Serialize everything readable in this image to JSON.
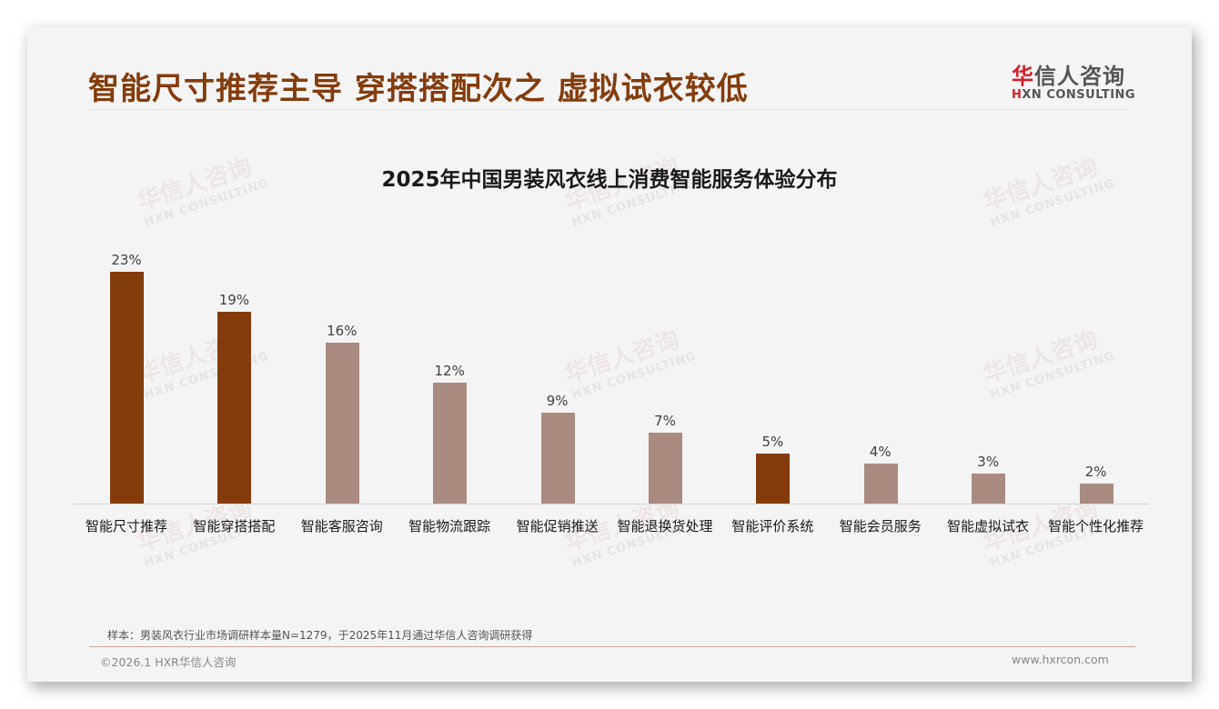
{
  "slide": {
    "title": "智能尺寸推荐主导 穿搭搭配次之 虚拟试衣较低",
    "logo": {
      "cn_first": "华",
      "cn_rest": "信人咨询",
      "en_first": "H",
      "en_rest": "XN CONSULTING"
    },
    "watermark": {
      "cn": "华信人咨询",
      "en": "HXN CONSULTING"
    },
    "footnote": "样本：男装风衣行业市场调研样本量N=1279，于2025年11月通过华信人咨询调研获得",
    "footer_left": "©2026.1 HXR华信人咨询",
    "footer_right": "www.hxrcon.com"
  },
  "colors": {
    "highlight": "#843C0C",
    "normal": "#A98B80",
    "title": "#843C0C"
  },
  "chart_data": {
    "type": "bar",
    "title": "2025年中国男装风衣线上消费智能服务体验分布",
    "xlabel": "",
    "ylabel": "",
    "ylim": [
      0,
      25
    ],
    "grid": false,
    "legend": "none",
    "categories": [
      "智能尺寸推荐",
      "智能穿搭搭配",
      "智能客服咨询",
      "智能物流跟踪",
      "智能促销推送",
      "智能退换货处理",
      "智能评价系统",
      "智能会员服务",
      "智能虚拟试衣",
      "智能个性化推荐"
    ],
    "values": [
      23,
      19,
      16,
      12,
      9,
      7,
      5,
      4,
      3,
      2
    ],
    "value_labels": [
      "23%",
      "19%",
      "16%",
      "12%",
      "9%",
      "7%",
      "5%",
      "4%",
      "3%",
      "2%"
    ],
    "highlighted": [
      true,
      true,
      false,
      false,
      false,
      false,
      true,
      false,
      false,
      false
    ],
    "unit": "%"
  }
}
